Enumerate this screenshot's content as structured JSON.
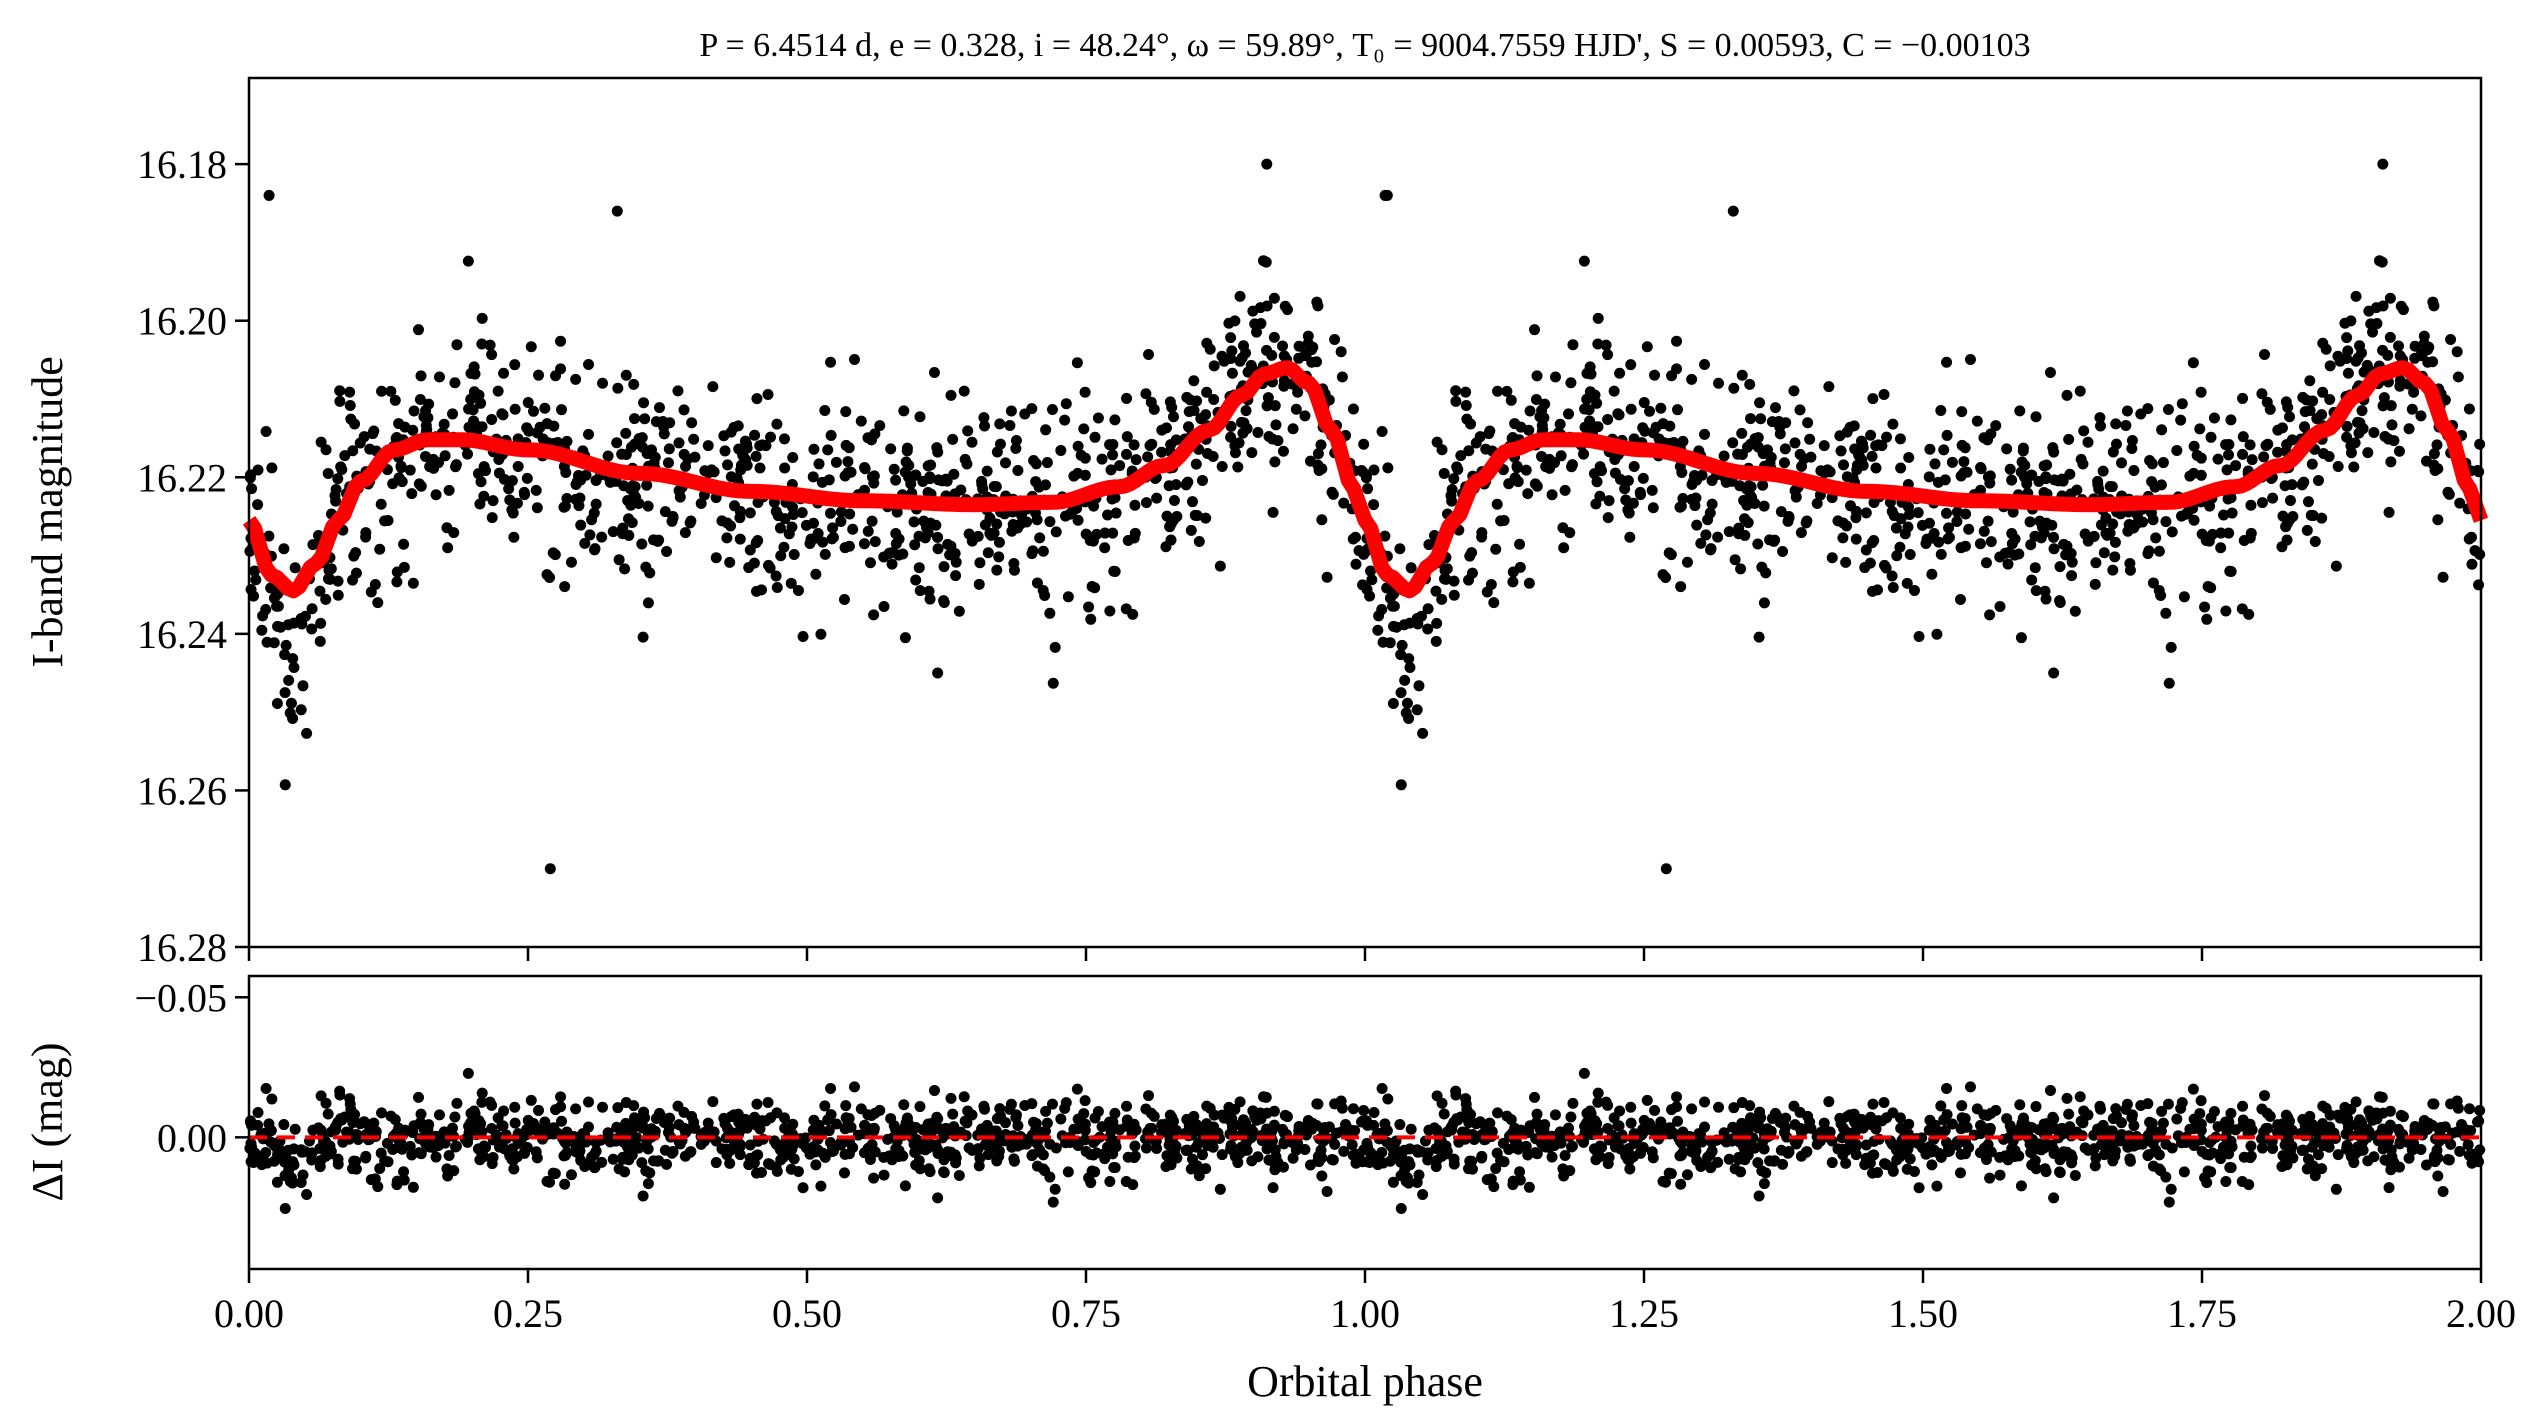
{
  "chart_data": [
    {
      "type": "scatter",
      "panel": "light-curve",
      "title": "P = 6.4514 d, e = 0.328, i = 48.24°, ω = 59.89°, T₀ = 9004.7559 HJD', S = 0.00593, C = −0.00103",
      "xlabel": "Orbital phase",
      "ylabel": "I-band magnitude",
      "xlim": [
        0,
        2
      ],
      "ylim": [
        16.28,
        16.169
      ],
      "y_inverted": true,
      "xticks": [
        "0.00",
        "0.25",
        "0.50",
        "0.75",
        "1.00",
        "1.25",
        "1.50",
        "1.75",
        "2.00"
      ],
      "yticks": [
        "16.18",
        "16.20",
        "16.22",
        "16.24",
        "16.26",
        "16.28"
      ],
      "ytick_values": [
        16.18,
        16.2,
        16.22,
        16.24,
        16.26,
        16.28
      ],
      "model_color": "#ff0000",
      "point_color": "#000000",
      "model_curve": {
        "phase": [
          0.0,
          0.02,
          0.04,
          0.06,
          0.08,
          0.1,
          0.13,
          0.16,
          0.19,
          0.25,
          0.35,
          0.45,
          0.55,
          0.65,
          0.72,
          0.78,
          0.82,
          0.86,
          0.89,
          0.91,
          0.93,
          0.95,
          0.97,
          0.99,
          1.0
        ],
        "mag": [
          16.2255,
          16.2325,
          16.2345,
          16.231,
          16.2255,
          16.2205,
          16.2165,
          16.2152,
          16.2152,
          16.2165,
          16.2195,
          16.2218,
          16.223,
          16.2235,
          16.2232,
          16.2212,
          16.2185,
          16.214,
          16.2095,
          16.2068,
          16.206,
          16.208,
          16.214,
          16.2215,
          16.2255
        ]
      },
      "observations": {
        "count_per_cycle": 1000,
        "scatter_sigma_mag": 0.0068,
        "primary_dip_extra_depth_mag": 0.018,
        "primary_dip_phase": [
          0.02,
          0.065
        ],
        "brightest_points": [
          [
            0.912,
            16.18
          ],
          [
            0.018,
            16.184
          ],
          [
            1.02,
            16.184
          ],
          [
            0.33,
            16.186
          ],
          [
            0.27,
            16.27
          ]
        ]
      }
    },
    {
      "type": "scatter",
      "panel": "residuals",
      "ylabel": "ΔI (mag)",
      "xlabel": "Orbital phase",
      "xlim": [
        0,
        2
      ],
      "ylim": [
        0.047,
        -0.0576
      ],
      "y_inverted": true,
      "yticks": [
        "−0.05",
        "0.00"
      ],
      "ytick_values": [
        -0.05,
        0.0
      ],
      "zero_line_color": "#ff0000",
      "zero_line_style": "dashed"
    }
  ]
}
